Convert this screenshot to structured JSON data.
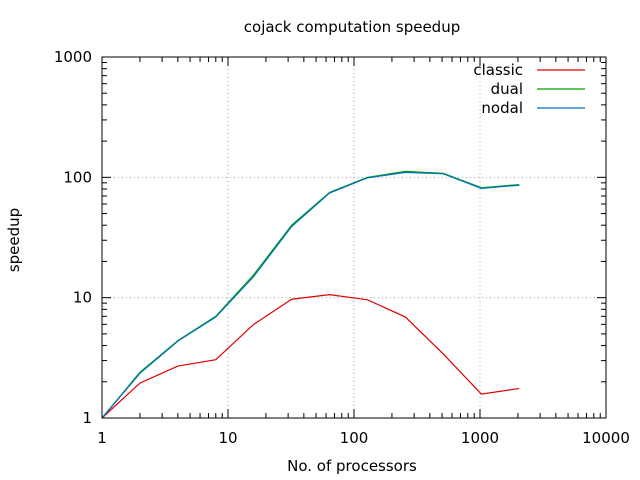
{
  "chart_data": {
    "type": "line",
    "title": "cojack computation speedup",
    "xlabel": "No. of processors",
    "ylabel": "speedup",
    "x_scale": "log",
    "y_scale": "log",
    "xlim": [
      1,
      10000
    ],
    "ylim": [
      1,
      1000
    ],
    "grid": true,
    "legend_position": "top-right",
    "x_ticks": [
      {
        "value": 1,
        "label": "1"
      },
      {
        "value": 10,
        "label": "10"
      },
      {
        "value": 100,
        "label": "100"
      },
      {
        "value": 1000,
        "label": "1000"
      },
      {
        "value": 10000,
        "label": "10000"
      }
    ],
    "y_ticks": [
      {
        "value": 1,
        "label": "1"
      },
      {
        "value": 10,
        "label": "10"
      },
      {
        "value": 100,
        "label": "100"
      },
      {
        "value": 1000,
        "label": "1000"
      }
    ],
    "series": [
      {
        "name": "classic",
        "color": "#e00000",
        "x": [
          1,
          2,
          4,
          8,
          16,
          32,
          64,
          128,
          256,
          512,
          1024,
          2048
        ],
        "y": [
          1,
          1.95,
          2.7,
          3.05,
          6.0,
          9.7,
          10.6,
          9.6,
          6.9,
          3.4,
          1.58,
          1.76
        ]
      },
      {
        "name": "dual",
        "color": "#00a000",
        "x": [
          1,
          2,
          4,
          8,
          16,
          32,
          64,
          128,
          256,
          512,
          1024,
          2048
        ],
        "y": [
          1,
          2.4,
          4.4,
          7.0,
          15.5,
          40.0,
          75.0,
          100.0,
          112.0,
          108.0,
          82.0,
          87.0
        ]
      },
      {
        "name": "nodal",
        "color": "#0070c0",
        "x": [
          1,
          2,
          4,
          8,
          16,
          32,
          64,
          128,
          256,
          512,
          1024,
          2048
        ],
        "y": [
          1,
          2.35,
          4.35,
          6.9,
          15.0,
          39.0,
          74.0,
          99.0,
          110.0,
          107.0,
          81.0,
          86.0
        ]
      }
    ]
  }
}
